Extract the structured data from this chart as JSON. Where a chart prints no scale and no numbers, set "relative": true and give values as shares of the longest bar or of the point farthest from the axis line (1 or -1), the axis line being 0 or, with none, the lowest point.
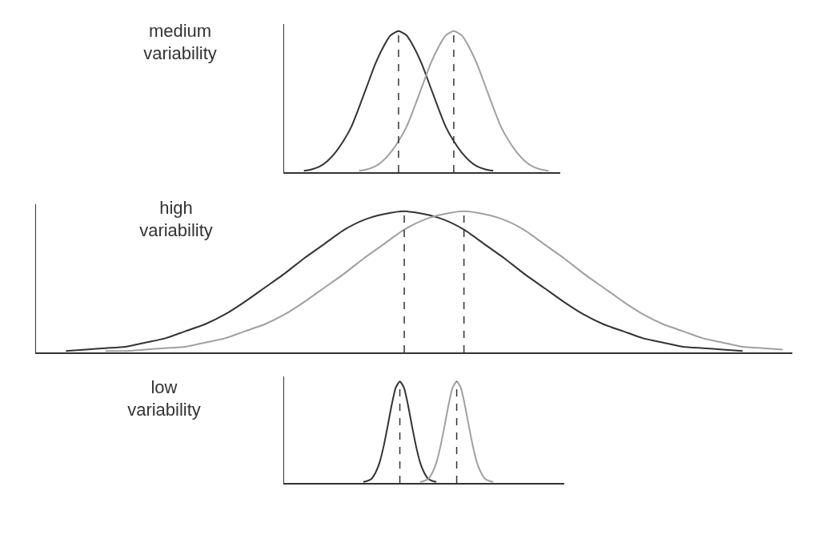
{
  "chart_data": [
    {
      "type": "line",
      "title": "medium variability",
      "relative": true,
      "grid": false,
      "line_style": "solid",
      "marker": "none",
      "categories": [
        null,
        null,
        null,
        null,
        null,
        null,
        null,
        null,
        null,
        null,
        null,
        null,
        null,
        null,
        null,
        null,
        null,
        null,
        null,
        null,
        null,
        null,
        null,
        null,
        null,
        null,
        null,
        null,
        null,
        null,
        null,
        null,
        null,
        null,
        null
      ],
      "series": [
        {
          "color": "#333333",
          "values": [
            null,
            null,
            0.01,
            0.02,
            0.04,
            0.08,
            0.14,
            0.22,
            0.32,
            0.46,
            0.61,
            0.76,
            0.88,
            0.97,
            1,
            0.97,
            0.88,
            0.76,
            0.61,
            0.46,
            0.32,
            0.22,
            0.14,
            0.08,
            0.04,
            0.02,
            0.01,
            null,
            null,
            null,
            null,
            null,
            null,
            null,
            null
          ]
        },
        {
          "color": "#a0a0a0",
          "values": [
            null,
            null,
            null,
            null,
            null,
            null,
            null,
            null,
            null,
            0.01,
            0.02,
            0.04,
            0.08,
            0.14,
            0.22,
            0.32,
            0.46,
            0.61,
            0.76,
            0.88,
            0.97,
            1,
            0.97,
            0.88,
            0.76,
            0.61,
            0.46,
            0.32,
            0.22,
            0.14,
            0.08,
            0.04,
            0.02,
            0.01,
            null
          ]
        }
      ]
    },
    {
      "type": "line",
      "title": "high variability",
      "relative": true,
      "grid": false,
      "line_style": "solid",
      "marker": "none",
      "categories": [
        null,
        null,
        null,
        null,
        null,
        null,
        null,
        null,
        null,
        null,
        null,
        null,
        null,
        null,
        null,
        null,
        null,
        null,
        null,
        null,
        null,
        null,
        null,
        null,
        null,
        null,
        null,
        null,
        null,
        null,
        null,
        null,
        null,
        null,
        null,
        null,
        null,
        null
      ],
      "series": [
        {
          "color": "#333333",
          "values": [
            null,
            0.01,
            0.02,
            0.03,
            0.04,
            0.07,
            0.1,
            0.15,
            0.2,
            0.27,
            0.36,
            0.46,
            0.56,
            0.67,
            0.77,
            0.87,
            0.94,
            0.98,
            1,
            0.98,
            0.94,
            0.87,
            0.77,
            0.67,
            0.56,
            0.46,
            0.36,
            0.27,
            0.2,
            0.15,
            0.1,
            0.07,
            0.04,
            0.03,
            0.02,
            0.01,
            null,
            null
          ]
        },
        {
          "color": "#a0a0a0",
          "values": [
            null,
            null,
            null,
            0.01,
            0.01,
            0.02,
            0.03,
            0.04,
            0.07,
            0.1,
            0.15,
            0.2,
            0.27,
            0.36,
            0.46,
            0.56,
            0.67,
            0.77,
            0.87,
            0.94,
            0.98,
            1,
            0.98,
            0.94,
            0.87,
            0.77,
            0.67,
            0.56,
            0.46,
            0.36,
            0.27,
            0.2,
            0.15,
            0.1,
            0.07,
            0.04,
            0.03,
            0.02
          ]
        }
      ]
    },
    {
      "type": "line",
      "title": "low variability",
      "relative": true,
      "grid": false,
      "line_style": "solid",
      "marker": "none",
      "categories": [
        null,
        null,
        null,
        null,
        null,
        null,
        null,
        null,
        null,
        null,
        null,
        null,
        null,
        null,
        null,
        null,
        null,
        null,
        null,
        null,
        null,
        null,
        null,
        null,
        null,
        null,
        null,
        null,
        null,
        null,
        null,
        null,
        null,
        null,
        null,
        null,
        null,
        null,
        null,
        null,
        null,
        null,
        null,
        null,
        null,
        null,
        null,
        null,
        null,
        null,
        null,
        null,
        null,
        null,
        null,
        null,
        null,
        null,
        null,
        null,
        null,
        null,
        null,
        null,
        null,
        null,
        null,
        null,
        null
      ],
      "series": [
        {
          "color": "#333333",
          "values": [
            null,
            null,
            null,
            null,
            null,
            null,
            null,
            null,
            null,
            null,
            null,
            null,
            null,
            null,
            null,
            null,
            null,
            null,
            null,
            0.01,
            0.02,
            0.04,
            0.1,
            0.2,
            0.36,
            0.56,
            0.77,
            0.94,
            1,
            0.94,
            0.77,
            0.56,
            0.36,
            0.2,
            0.1,
            0.04,
            0.02,
            0.01,
            null,
            null,
            null,
            null,
            null,
            null,
            null,
            null,
            null,
            null,
            null,
            null,
            null,
            null,
            null,
            null,
            null,
            null,
            null,
            null,
            null,
            null,
            null,
            null,
            null,
            null,
            null,
            null,
            null,
            null,
            null
          ]
        },
        {
          "color": "#a0a0a0",
          "values": [
            null,
            null,
            null,
            null,
            null,
            null,
            null,
            null,
            null,
            null,
            null,
            null,
            null,
            null,
            null,
            null,
            null,
            null,
            null,
            null,
            null,
            null,
            null,
            null,
            null,
            null,
            null,
            null,
            null,
            null,
            null,
            null,
            null,
            0.01,
            0.02,
            0.04,
            0.1,
            0.2,
            0.36,
            0.56,
            0.77,
            0.94,
            1,
            0.94,
            0.77,
            0.56,
            0.36,
            0.2,
            0.1,
            0.04,
            0.02,
            0.01,
            null,
            null,
            null,
            null,
            null,
            null,
            null,
            null,
            null,
            null,
            null,
            null,
            null,
            null,
            null,
            null,
            null
          ]
        }
      ]
    }
  ]
}
